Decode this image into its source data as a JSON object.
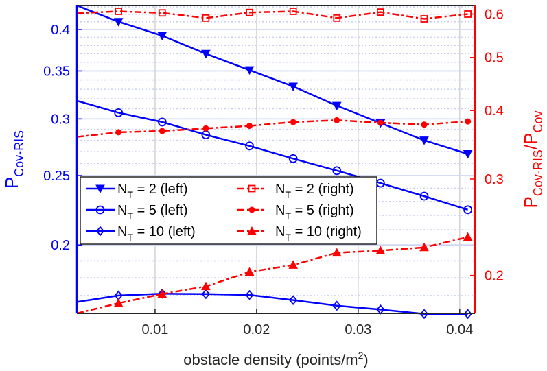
{
  "chart_data": {
    "type": "line",
    "xlabel": "obstacle density (points/m",
    "xlabel_sup": "2",
    "xlabel_tail": ")",
    "xlim": [
      0.0023,
      0.0415
    ],
    "xticks": [
      0.01,
      0.02,
      0.03,
      0.04
    ],
    "xtick_labels": [
      "0.01",
      "0.02",
      "0.03",
      "0.04"
    ],
    "left_axis": {
      "scale": "log",
      "color": "#0000ff",
      "label_main": "P",
      "label_sub": "Cov-RIS",
      "ylim": [
        0.1605,
        0.432
      ],
      "ticks": [
        0.2,
        0.25,
        0.3,
        0.35,
        0.4
      ],
      "tick_labels": [
        "0.2",
        "0.25",
        "0.3",
        "0.35",
        "0.4"
      ],
      "minor_step": 0.01
    },
    "right_axis": {
      "scale": "log",
      "color": "#ff0000",
      "label_main": "P",
      "label_sub1": "Cov-RIS",
      "label_mid": "/P",
      "label_sub2": "Cov",
      "ylim": [
        0.1705,
        0.622
      ],
      "ticks": [
        0.2,
        0.3,
        0.4,
        0.5,
        0.6
      ],
      "tick_labels": [
        "0.2",
        "0.3",
        "0.4",
        "0.5",
        "0.6"
      ],
      "minor_step": 0.02
    },
    "marker_x": [
      0.0064,
      0.0107,
      0.015,
      0.0193,
      0.0236,
      0.0279,
      0.0322,
      0.0365,
      0.0408
    ],
    "series": [
      {
        "name": "N_T = 2 (left)",
        "axis": "left",
        "marker": "triangle-down",
        "style": "solid",
        "color": "#0000ff",
        "x": [
          0.0023,
          0.0064,
          0.0107,
          0.015,
          0.0193,
          0.0236,
          0.0279,
          0.0322,
          0.0365,
          0.0408
        ],
        "values": [
          0.432,
          0.41,
          0.392,
          0.37,
          0.351,
          0.333,
          0.313,
          0.296,
          0.28,
          0.268
        ]
      },
      {
        "name": "N_T = 5 (left)",
        "axis": "left",
        "marker": "circle",
        "style": "solid",
        "color": "#0000ff",
        "x": [
          0.0023,
          0.0064,
          0.0107,
          0.015,
          0.0193,
          0.0236,
          0.0279,
          0.0322,
          0.0365,
          0.0408
        ],
        "values": [
          0.318,
          0.306,
          0.297,
          0.285,
          0.275,
          0.264,
          0.254,
          0.244,
          0.234,
          0.224
        ]
      },
      {
        "name": "N_T = 10 (left)",
        "axis": "left",
        "marker": "diamond",
        "style": "solid",
        "color": "#0000ff",
        "x": [
          0.0023,
          0.0064,
          0.0107,
          0.015,
          0.0193,
          0.0236,
          0.0279,
          0.0322,
          0.0365,
          0.0408
        ],
        "values": [
          0.1665,
          0.17,
          0.171,
          0.1708,
          0.1703,
          0.1675,
          0.1645,
          0.1625,
          0.1602,
          0.1602
        ]
      },
      {
        "name": "N_T = 2 (right)",
        "axis": "right",
        "marker": "square",
        "style": "dashdot",
        "color": "#ff0000",
        "x": [
          0.0023,
          0.0064,
          0.0107,
          0.015,
          0.0193,
          0.0236,
          0.0279,
          0.0322,
          0.0365,
          0.0408
        ],
        "values": [
          0.602,
          0.607,
          0.603,
          0.59,
          0.604,
          0.607,
          0.59,
          0.605,
          0.588,
          0.6
        ]
      },
      {
        "name": "N_T = 5 (right)",
        "axis": "right",
        "marker": "dot",
        "style": "dashdot",
        "color": "#ff0000",
        "x": [
          0.0023,
          0.0064,
          0.0107,
          0.015,
          0.0193,
          0.0236,
          0.0279,
          0.0322,
          0.0365,
          0.0408
        ],
        "values": [
          0.358,
          0.365,
          0.367,
          0.371,
          0.375,
          0.381,
          0.384,
          0.38,
          0.377,
          0.382
        ]
      },
      {
        "name": "N_T = 10 (right)",
        "axis": "right",
        "marker": "triangle-up",
        "style": "dashdot",
        "color": "#ff0000",
        "x": [
          0.0023,
          0.0064,
          0.0107,
          0.015,
          0.0193,
          0.0236,
          0.0279,
          0.0322,
          0.0365,
          0.0408
        ],
        "values": [
          0.1705,
          0.178,
          0.185,
          0.191,
          0.203,
          0.209,
          0.22,
          0.222,
          0.225,
          0.235
        ]
      }
    ],
    "legend": {
      "placement": "center-left",
      "rows": [
        {
          "left_base": "N",
          "left_sub": "T",
          "left_rest": " = 2 (left)",
          "right_base": "N",
          "right_sub": "T",
          "right_rest": " = 2 (right)"
        },
        {
          "left_base": "N",
          "left_sub": "T",
          "left_rest": " = 5 (left)",
          "right_base": "N",
          "right_sub": "T",
          "right_rest": " = 5 (right)"
        },
        {
          "left_base": "N",
          "left_sub": "T",
          "left_rest": " = 10 (left)",
          "right_base": "N",
          "right_sub": "T",
          "right_rest": " = 10 (right)"
        }
      ]
    },
    "grid": true
  }
}
